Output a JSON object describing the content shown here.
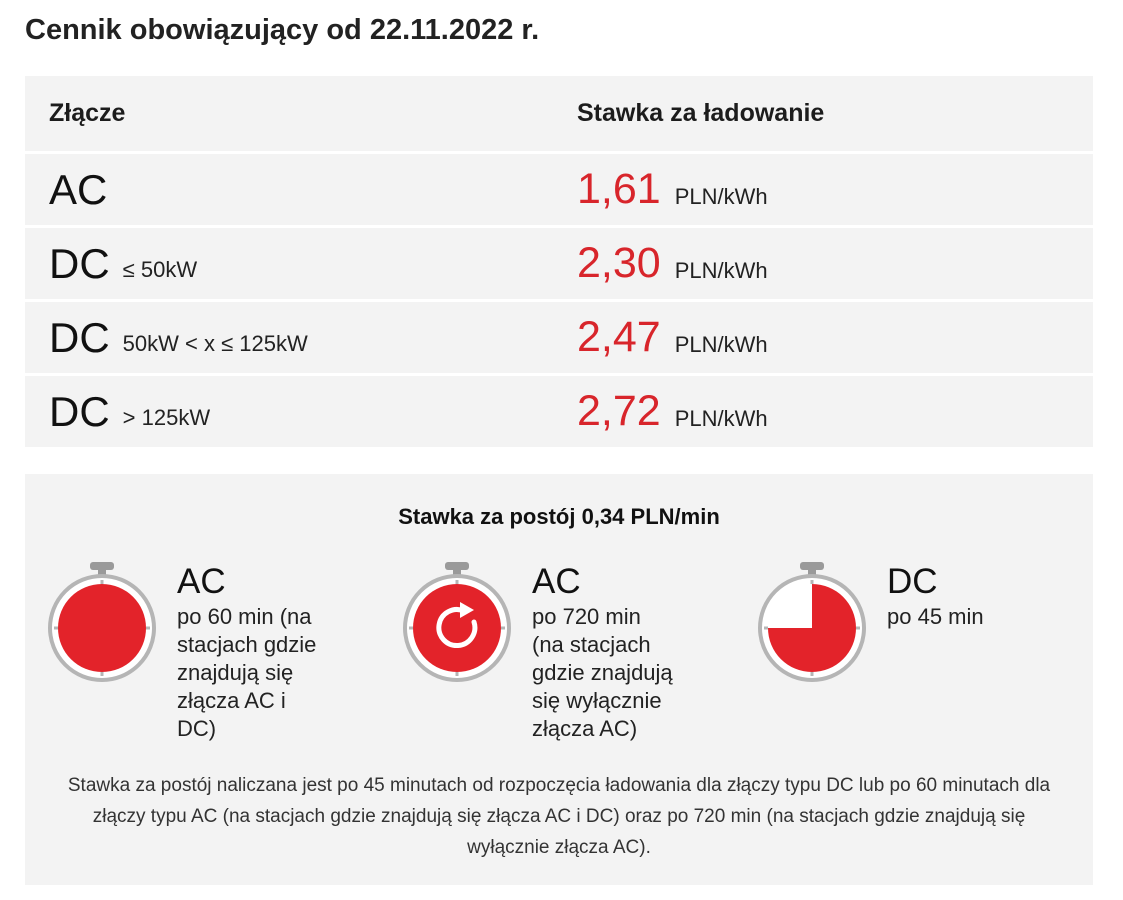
{
  "page_title": "Cennik obowiązujący od 22.11.2022 r.",
  "table": {
    "header": {
      "connector": "Złącze",
      "rate": "Stawka za ładowanie"
    },
    "rows": [
      {
        "name": "AC",
        "qualifier": "",
        "value": "1,61",
        "unit": "PLN/kWh"
      },
      {
        "name": "DC",
        "qualifier": "≤ 50kW",
        "value": "2,30",
        "unit": "PLN/kWh"
      },
      {
        "name": "DC",
        "qualifier": "50kW < x ≤ 125kW",
        "value": "2,47",
        "unit": "PLN/kWh"
      },
      {
        "name": "DC",
        "qualifier": "> 125kW",
        "value": "2,72",
        "unit": "PLN/kWh"
      }
    ]
  },
  "parking": {
    "title": "Stawka za postój 0,34 PLN/min",
    "items": [
      {
        "icon": "stopwatch-full-icon",
        "type": "AC",
        "desc": "po 60 min (na\nstacjach gdzie\nznajdują się\nzłącza AC i\nDC)"
      },
      {
        "icon": "stopwatch-refresh-icon",
        "type": "AC",
        "desc": "po 720 min\n(na stacjach\ngdzie znajdują\nsię wyłącznie\nzłącza AC)"
      },
      {
        "icon": "stopwatch-three-quarter-icon",
        "type": "DC",
        "desc": "po 45 min"
      }
    ],
    "note": "Stawka za postój naliczana jest po 45 minutach od rozpoczęcia ładowania dla złączy typu DC lub po 60 minutach dla złączy typu AC (na stacjach gdzie znajdują się złącza AC i DC) oraz po 720 min (na stacjach gdzie znajdują się wyłącznie złącza AC)."
  },
  "colors": {
    "accent": "#d8252b",
    "panel": "#f3f3f3",
    "bezel": "#b5b5b5"
  }
}
